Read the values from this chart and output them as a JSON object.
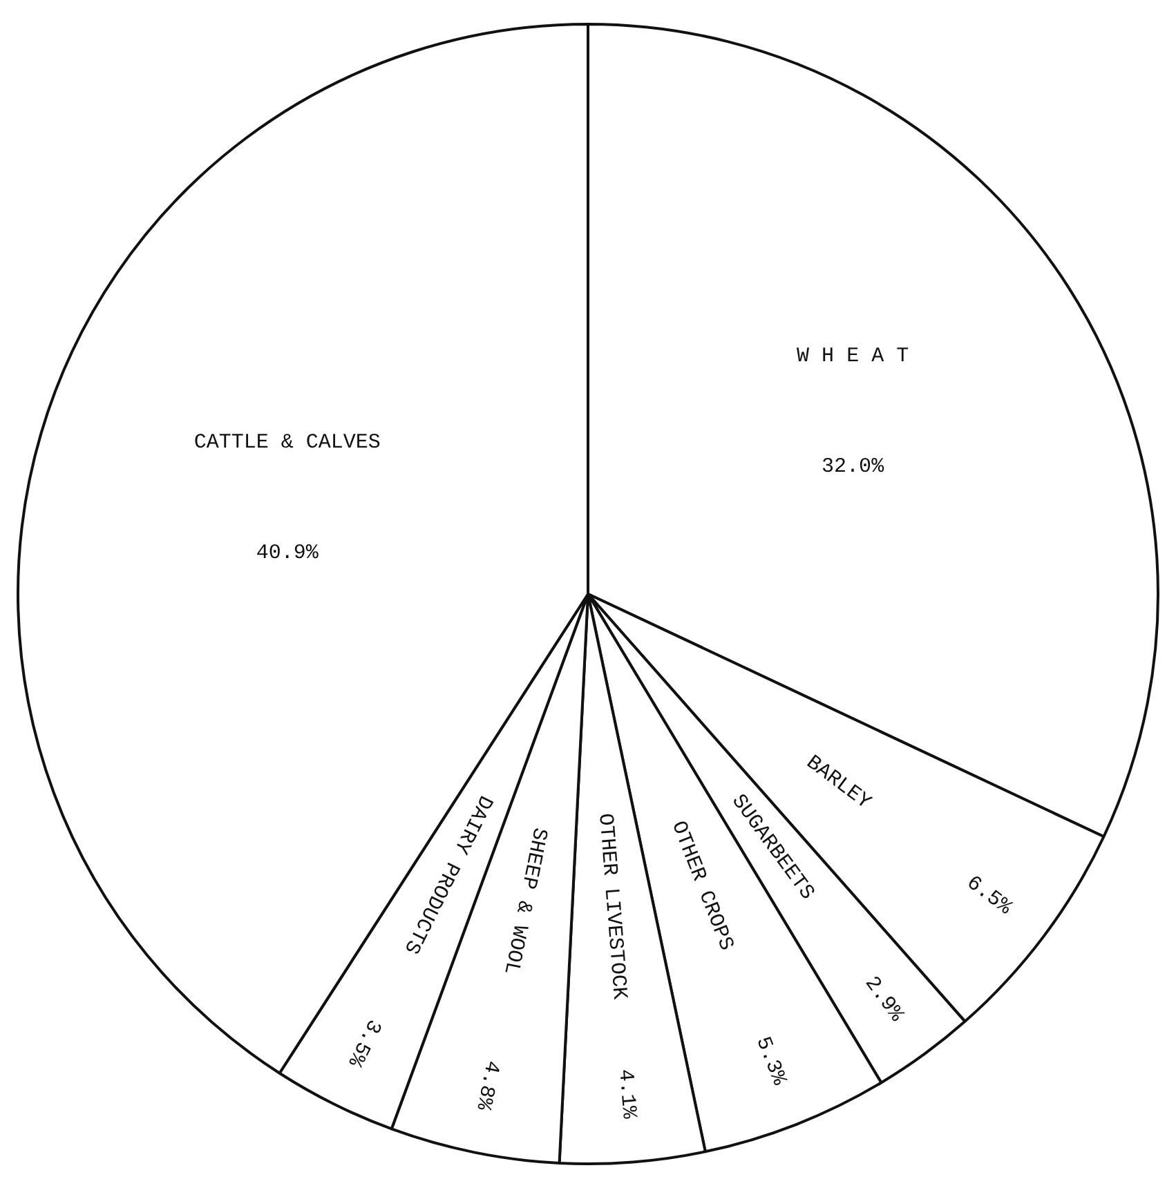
{
  "chart_data": {
    "type": "pie",
    "categories": [
      "W H E A T",
      "BARLEY",
      "SUGARBEETS",
      "OTHER CROPS",
      "OTHER LIVESTOCK",
      "SHEEP & WOOL",
      "DAIRY PRODUCTS",
      "CATTLE & CALVES"
    ],
    "values": [
      32.0,
      6.5,
      2.9,
      5.3,
      4.1,
      4.8,
      3.5,
      40.9
    ],
    "colors": [
      "#ffffff",
      "#ffffff",
      "#ffffff",
      "#ffffff",
      "#ffffff",
      "#ffffff",
      "#ffffff",
      "#ffffff"
    ],
    "value_labels": [
      "32.0%",
      "6.5%",
      "2.9%",
      "5.3%",
      "4.1%",
      "4.8%",
      "3.5%",
      "40.9%"
    ],
    "legend": false
  }
}
